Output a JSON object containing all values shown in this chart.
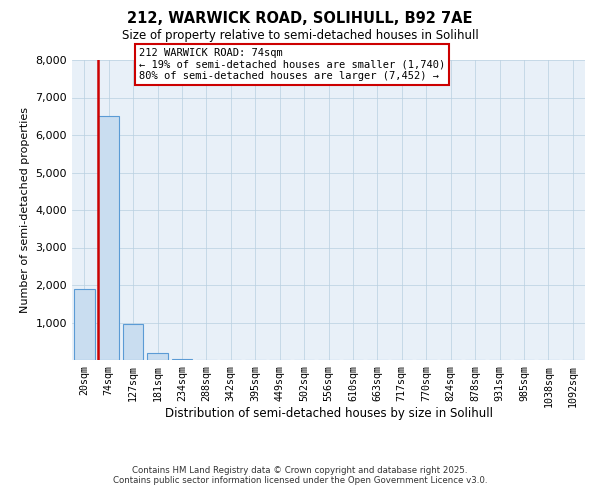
{
  "title1": "212, WARWICK ROAD, SOLIHULL, B92 7AE",
  "title2": "Size of property relative to semi-detached houses in Solihull",
  "xlabel": "Distribution of semi-detached houses by size in Solihull",
  "ylabel": "Number of semi-detached properties",
  "categories": [
    "20sqm",
    "74sqm",
    "127sqm",
    "181sqm",
    "234sqm",
    "288sqm",
    "342sqm",
    "395sqm",
    "449sqm",
    "502sqm",
    "556sqm",
    "610sqm",
    "663sqm",
    "717sqm",
    "770sqm",
    "824sqm",
    "878sqm",
    "931sqm",
    "985sqm",
    "1038sqm",
    "1092sqm"
  ],
  "values": [
    1900,
    6500,
    950,
    180,
    30,
    5,
    2,
    1,
    0,
    0,
    0,
    0,
    0,
    0,
    0,
    0,
    0,
    0,
    0,
    0,
    0
  ],
  "bar_color": "#c9ddf0",
  "bar_edge_color": "#5b9bd5",
  "annotation_title": "212 WARWICK ROAD: 74sqm",
  "annotation_line1": "← 19% of semi-detached houses are smaller (1,740)",
  "annotation_line2": "80% of semi-detached houses are larger (7,452) →",
  "annotation_box_facecolor": "#ffffff",
  "annotation_border_color": "#cc0000",
  "red_line_color": "#cc0000",
  "ylim": [
    0,
    8000
  ],
  "yticks": [
    0,
    1000,
    2000,
    3000,
    4000,
    5000,
    6000,
    7000,
    8000
  ],
  "grid_color": "#b8cfe0",
  "background_color": "#e8f0f8",
  "footer1": "Contains HM Land Registry data © Crown copyright and database right 2025.",
  "footer2": "Contains public sector information licensed under the Open Government Licence v3.0."
}
